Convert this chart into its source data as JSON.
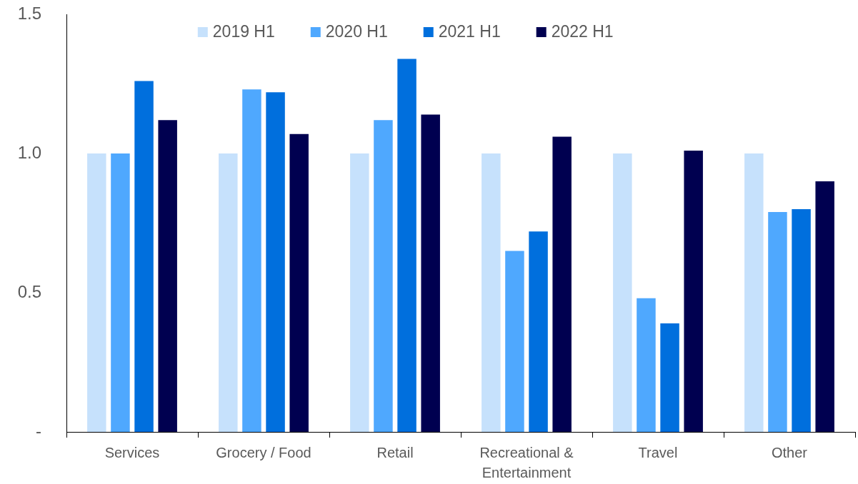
{
  "chart_data": {
    "type": "bar",
    "categories": [
      "Services",
      "Grocery / Food",
      "Retail",
      "Recreational & Entertainment",
      "Travel",
      "Other"
    ],
    "series": [
      {
        "name": "2019 H1",
        "color": "#c6e1fc",
        "values": [
          1,
          1,
          1,
          1,
          1,
          1
        ]
      },
      {
        "name": "2020 H1",
        "color": "#4fa8fe",
        "values": [
          1,
          1.23,
          1.12,
          0.65,
          0.48,
          0.79
        ]
      },
      {
        "name": "2021 H1",
        "color": "#006fdd",
        "values": [
          1.26,
          1.22,
          1.34,
          0.72,
          0.39,
          0.8
        ]
      },
      {
        "name": "2022 H1",
        "color": "#000050",
        "values": [
          1.12,
          1.07,
          1.14,
          1.06,
          1.01,
          0.9
        ]
      }
    ],
    "ylim": [
      0,
      1.5
    ],
    "yticks": [
      {
        "value": 0,
        "label": "-"
      },
      0.5,
      {
        "value": 1,
        "label": "1.0"
      },
      1.5
    ],
    "legend": "top"
  }
}
